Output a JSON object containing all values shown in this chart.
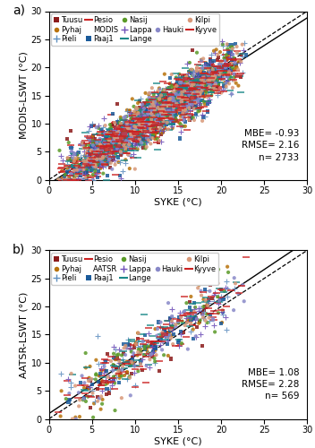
{
  "lakes": [
    {
      "name": "Tuusu",
      "color": "#8B1A1A",
      "marker": "s"
    },
    {
      "name": "Pyhaj",
      "color": "#B8720A",
      "marker": "o"
    },
    {
      "name": "Pieli",
      "color": "#6090C0",
      "marker": "+"
    },
    {
      "name": "Pesio",
      "color": "#CC2222",
      "marker": "-"
    },
    {
      "name": "Paaj1",
      "color": "#1A5A9A",
      "marker": "s"
    },
    {
      "name": "Nasij",
      "color": "#5A9A28",
      "marker": "o"
    },
    {
      "name": "Lappa",
      "color": "#7050B8",
      "marker": "+"
    },
    {
      "name": "Lange",
      "color": "#1A8888",
      "marker": "-"
    },
    {
      "name": "Hauki",
      "color": "#8888C8",
      "marker": "o"
    },
    {
      "name": "Kilpi",
      "color": "#D89878",
      "marker": "o"
    },
    {
      "name": "Kyyve",
      "color": "#CC2222",
      "marker": "-"
    }
  ],
  "legend_order_row1": [
    "Tuusu",
    "Pyhaj",
    "Pieli",
    "Pesio"
  ],
  "legend_order_row2": [
    "Paaj1",
    "Nasij",
    "Lappa",
    "Lange"
  ],
  "legend_order_row3": [
    "Hauki",
    "Kilpi",
    "Kyyve"
  ],
  "panel_a": {
    "title": "MODIS",
    "ylabel": "MODIS-LSWT (°C)",
    "xlabel": "SYKE (°C)",
    "MBE": -0.93,
    "RMSE": 2.16,
    "n": 2733
  },
  "panel_b": {
    "title": "AATSR",
    "ylabel": "AATSR-LSWT (°C)",
    "xlabel": "SYKE (°C)",
    "MBE": 1.08,
    "RMSE": 2.28,
    "n": 569
  },
  "panel_labels": [
    "a)",
    "b)"
  ],
  "figsize": [
    3.52,
    5.0
  ],
  "dpi": 100
}
